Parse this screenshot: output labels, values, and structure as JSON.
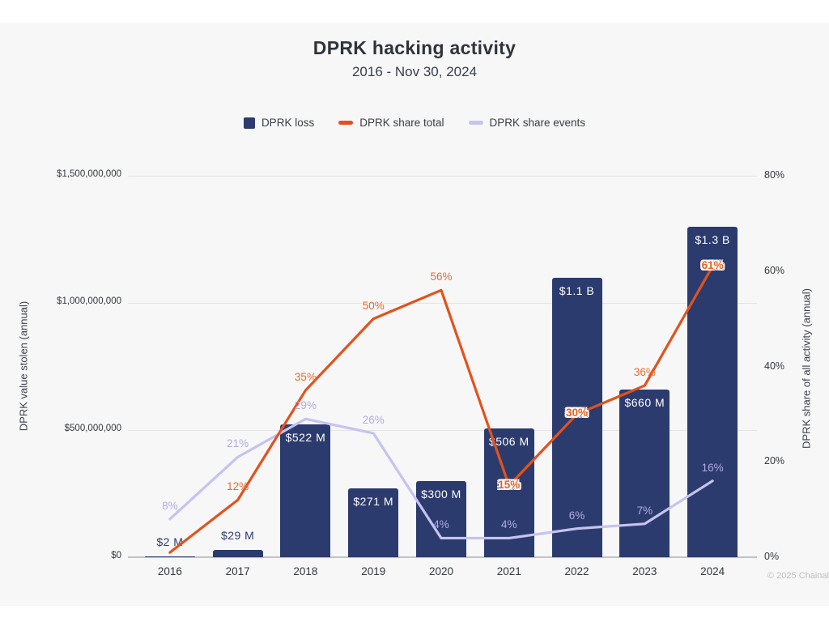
{
  "title": "DPRK hacking activity",
  "subtitle": "2016 - Nov 30, 2024",
  "legend": [
    {
      "label": "DPRK loss",
      "type": "square",
      "color": "#2c3b6e"
    },
    {
      "label": "DPRK share total",
      "type": "dash",
      "color": "#e1531d"
    },
    {
      "label": "DPRK share events",
      "type": "dash",
      "color": "#c6c3f0"
    }
  ],
  "y_left": {
    "title": "DPRK value stolen (annual)",
    "ticks": [
      "$1,500,000,000",
      "$1,000,000,000",
      "$500,000,000",
      "$0"
    ]
  },
  "y_right": {
    "title": "DPRK share of all activity (annual)",
    "ticks": [
      "80%",
      "60%",
      "40%",
      "20%",
      "0%"
    ]
  },
  "footer": "© 2025 Chainal",
  "colors": {
    "bar": "#2c3b6e",
    "line_total": "#e1531d",
    "line_events": "#c6c3f0",
    "label_total": "#e86a2f",
    "label_total_outlined": "#e8601f",
    "label_events": "#b0ace2",
    "bar_label_inside": "#ffffff",
    "bar_label_outside": "#2c3b6e",
    "grid": "#e4e4e6",
    "axis": "#c2c2c4"
  },
  "chart_data": {
    "type": "bar+line",
    "categories": [
      "2016",
      "2017",
      "2018",
      "2019",
      "2020",
      "2021",
      "2022",
      "2023",
      "2024"
    ],
    "ylim_left": [
      0,
      1500000000
    ],
    "ylim_right": [
      0,
      80
    ],
    "grid": "horizontal-only",
    "legend_position": "top-center",
    "series": [
      {
        "name": "DPRK loss",
        "type": "bar",
        "axis": "left",
        "unit": "USD",
        "values": [
          2000000,
          29000000,
          522000000,
          271000000,
          300000000,
          506000000,
          1100000000,
          660000000,
          1300000000
        ],
        "labels": [
          "$2 M",
          "$29 M",
          "$522 M",
          "$271 M",
          "$300 M",
          "$506 M",
          "$1.1 B",
          "$660 M",
          "$1.3 B"
        ]
      },
      {
        "name": "DPRK share total",
        "type": "line",
        "axis": "right",
        "unit": "%",
        "values": [
          1,
          12,
          35,
          50,
          56,
          15,
          30,
          36,
          61
        ],
        "labels": [
          "",
          "12%",
          "35%",
          "50%",
          "56%",
          "15%",
          "30%",
          "36%",
          "61%"
        ],
        "outlined": [
          false,
          false,
          false,
          false,
          false,
          true,
          true,
          false,
          true
        ]
      },
      {
        "name": "DPRK share events",
        "type": "line",
        "axis": "right",
        "unit": "%",
        "values": [
          8,
          21,
          29,
          26,
          4,
          4,
          6,
          7,
          16
        ],
        "labels": [
          "8%",
          "21%",
          "29%",
          "26%",
          "4%",
          "4%",
          "6%",
          "7%",
          "16%"
        ],
        "outlined": [
          false,
          false,
          false,
          false,
          false,
          false,
          false,
          false,
          false
        ]
      }
    ]
  }
}
